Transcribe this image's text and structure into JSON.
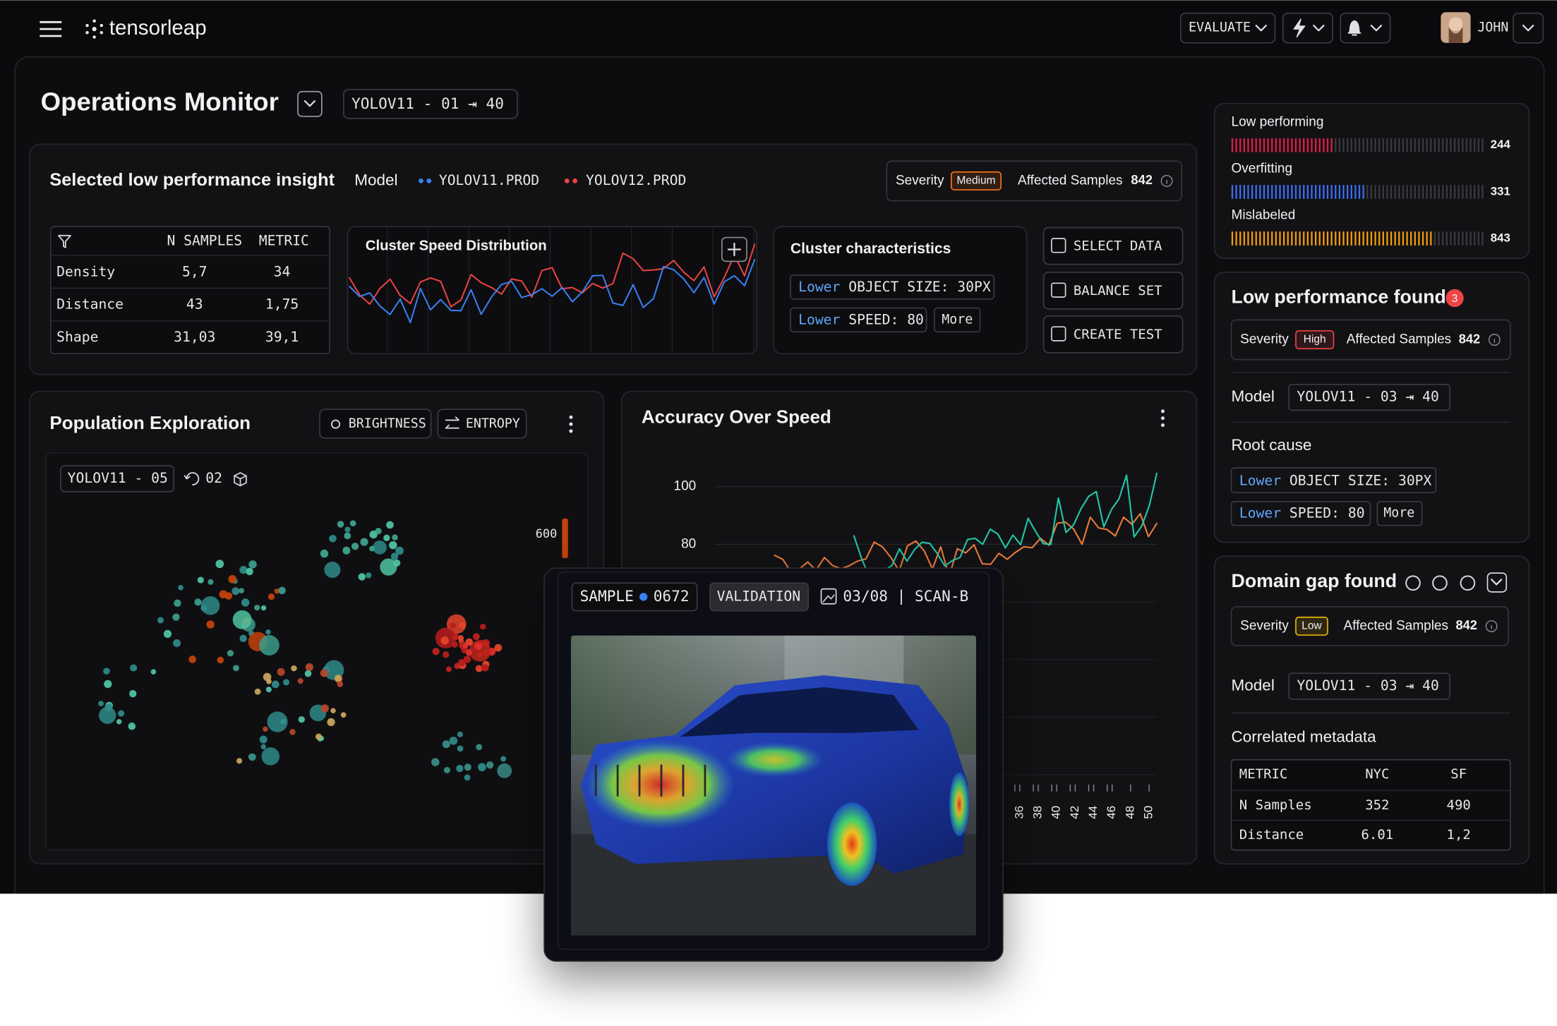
{
  "nav": {
    "brand": "tensorleap",
    "evaluate": "EVALUATE",
    "user": "JOHN"
  },
  "header": {
    "title": "Operations Monitor",
    "range": "YOLOV11 - 01 ⇥ 40"
  },
  "insight": {
    "title": "Selected low performance insight",
    "model_label": "Model",
    "models": [
      "YOLOV11.PROD",
      "YOLOV12.PROD"
    ],
    "severity_label": "Severity",
    "severity": "Medium",
    "affected_label": "Affected Samples",
    "affected": 842,
    "table": {
      "headers": [
        "N SAMPLES",
        "METRIC"
      ],
      "rows": [
        [
          "Density",
          "5,7",
          34
        ],
        [
          "Distance",
          43,
          "1,75"
        ],
        [
          "Shape",
          "31,03",
          "39,1"
        ]
      ]
    },
    "distribution_title": "Cluster Speed Distribution",
    "characteristics": {
      "title": "Cluster characteristics",
      "chips": [
        {
          "qualifier": "Lower",
          "text": "OBJECT SIZE: 30PX"
        },
        {
          "qualifier": "Lower",
          "text": "SPEED: 80"
        }
      ],
      "more": "More"
    },
    "actions": [
      "SELECT DATA",
      "BALANCE SET",
      "CREATE TEST"
    ]
  },
  "issues": [
    {
      "label": "Low performing",
      "count": 244
    },
    {
      "label": "Overfitting",
      "count": 331
    },
    {
      "label": "Mislabeled",
      "count": 843
    }
  ],
  "low_performance": {
    "title": "Low performance found",
    "count": 3,
    "severity_label": "Severity",
    "severity": "High",
    "affected_label": "Affected Samples",
    "affected": 842,
    "model_label": "Model",
    "model": "YOLOV11 - 03 ⇥ 40",
    "root_cause_label": "Root cause",
    "chips": [
      {
        "qualifier": "Lower",
        "text": "OBJECT SIZE: 30PX"
      },
      {
        "qualifier": "Lower",
        "text": "SPEED: 80"
      }
    ],
    "more": "More"
  },
  "domain_gap": {
    "title": "Domain gap found",
    "severity_label": "Severity",
    "severity": "Low",
    "affected_label": "Affected Samples",
    "affected": 842,
    "model_label": "Model",
    "model": "YOLOV11 - 03 ⇥ 40",
    "metadata_title": "Correlated metadata",
    "table": {
      "headers": [
        "METRIC",
        "NYC",
        "SF"
      ],
      "rows": [
        [
          "N Samples",
          352,
          490
        ],
        [
          "Distance",
          6.01,
          "1,2"
        ]
      ]
    }
  },
  "population": {
    "title": "Population Exploration",
    "buttons": [
      "BRIGHTNESS",
      "ENTROPY"
    ],
    "model": "YOLOV11 - 05",
    "refresh": "02",
    "scale_max": 600
  },
  "accuracy": {
    "title": "Accuracy Over Speed",
    "yticks": [
      100,
      80
    ],
    "xticks": [
      36,
      38,
      40,
      42,
      44,
      46,
      48,
      50
    ]
  },
  "sample": {
    "label": "SAMPLE",
    "id": "0672",
    "split": "VALIDATION",
    "scan": "03/08 | SCAN-B"
  }
}
